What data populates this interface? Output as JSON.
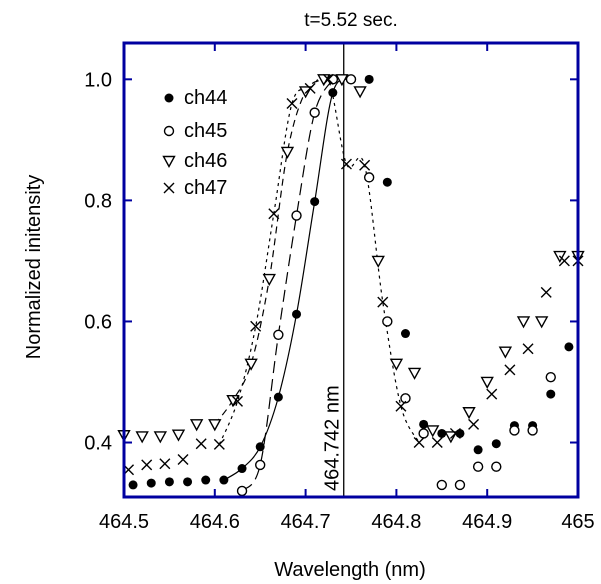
{
  "chart_data": {
    "type": "scatter",
    "title": "t=5.52 sec.",
    "xlabel": "Wavelength (nm)",
    "ylabel": "Normalized initensity",
    "xlim": [
      464.5,
      465.0
    ],
    "ylim": [
      0.31,
      1.06
    ],
    "x_ticks": [
      464.5,
      464.6,
      464.7,
      464.8,
      464.9,
      465.0
    ],
    "x_tick_labels": [
      "464.5",
      "464.6",
      "464.7",
      "464.8",
      "464.9",
      "465"
    ],
    "y_ticks": [
      0.4,
      0.6,
      0.8,
      1.0
    ],
    "y_tick_labels": [
      "0.4",
      "0.6",
      "0.8",
      "1.0"
    ],
    "grid": false,
    "legend_position": "top-left",
    "colors": {
      "frame": "#0000a0",
      "marks": "#000000",
      "background": "#ffffff"
    },
    "annotation": {
      "label": "464.742 nm",
      "x": 464.742
    },
    "series": [
      {
        "name": "ch44",
        "marker": "filled-circle",
        "line_style": "solid",
        "x": [
          464.51,
          464.53,
          464.55,
          464.57,
          464.59,
          464.61,
          464.63,
          464.65,
          464.67,
          464.69,
          464.71,
          464.73,
          464.75,
          464.77,
          464.79,
          464.81,
          464.83,
          464.85,
          464.87,
          464.89,
          464.91,
          464.93,
          464.95,
          464.97,
          464.99
        ],
        "y": [
          0.33,
          0.333,
          0.335,
          0.335,
          0.338,
          0.338,
          0.357,
          0.393,
          0.475,
          0.612,
          0.798,
          0.978,
          1.0,
          1.0,
          0.83,
          0.58,
          0.43,
          0.415,
          0.415,
          0.388,
          0.398,
          0.428,
          0.428,
          0.48,
          0.558
        ]
      },
      {
        "name": "ch45",
        "marker": "open-circle",
        "line_style": "long-dash",
        "x": [
          464.63,
          464.65,
          464.67,
          464.69,
          464.71,
          464.73,
          464.75,
          464.77,
          464.79,
          464.81,
          464.83,
          464.85,
          464.87,
          464.89,
          464.91,
          464.93,
          464.95,
          464.97
        ],
        "y": [
          0.32,
          0.363,
          0.578,
          0.775,
          0.945,
          1.0,
          1.0,
          0.838,
          0.6,
          0.473,
          0.415,
          0.33,
          0.33,
          0.36,
          0.36,
          0.42,
          0.42,
          0.508
        ]
      },
      {
        "name": "ch46",
        "marker": "open-triangle-down",
        "line_style": "short-dash",
        "x": [
          464.5,
          464.52,
          464.54,
          464.56,
          464.58,
          464.6,
          464.62,
          464.64,
          464.66,
          464.68,
          464.7,
          464.72,
          464.74,
          464.76,
          464.78,
          464.8,
          464.82,
          464.84,
          464.86,
          464.88,
          464.9,
          464.92,
          464.94,
          464.96,
          464.98,
          465.0
        ],
        "y": [
          0.412,
          0.41,
          0.41,
          0.413,
          0.43,
          0.43,
          0.47,
          0.53,
          0.67,
          0.88,
          0.98,
          1.0,
          1.0,
          0.98,
          0.7,
          0.53,
          0.515,
          0.42,
          0.41,
          0.45,
          0.5,
          0.55,
          0.6,
          0.6,
          0.708,
          0.708
        ]
      },
      {
        "name": "ch47",
        "marker": "cross",
        "line_style": "dotted",
        "x": [
          464.505,
          464.525,
          464.545,
          464.565,
          464.585,
          464.605,
          464.625,
          464.645,
          464.665,
          464.685,
          464.705,
          464.725,
          464.745,
          464.765,
          464.785,
          464.805,
          464.825,
          464.845,
          464.865,
          464.885,
          464.905,
          464.925,
          464.945,
          464.965,
          464.985,
          465.0
        ],
        "y": [
          0.355,
          0.363,
          0.365,
          0.372,
          0.398,
          0.397,
          0.468,
          0.592,
          0.778,
          0.96,
          0.985,
          1.0,
          0.86,
          0.858,
          0.632,
          0.46,
          0.4,
          0.4,
          0.415,
          0.43,
          0.48,
          0.52,
          0.555,
          0.648,
          0.7,
          0.7
        ]
      }
    ]
  }
}
